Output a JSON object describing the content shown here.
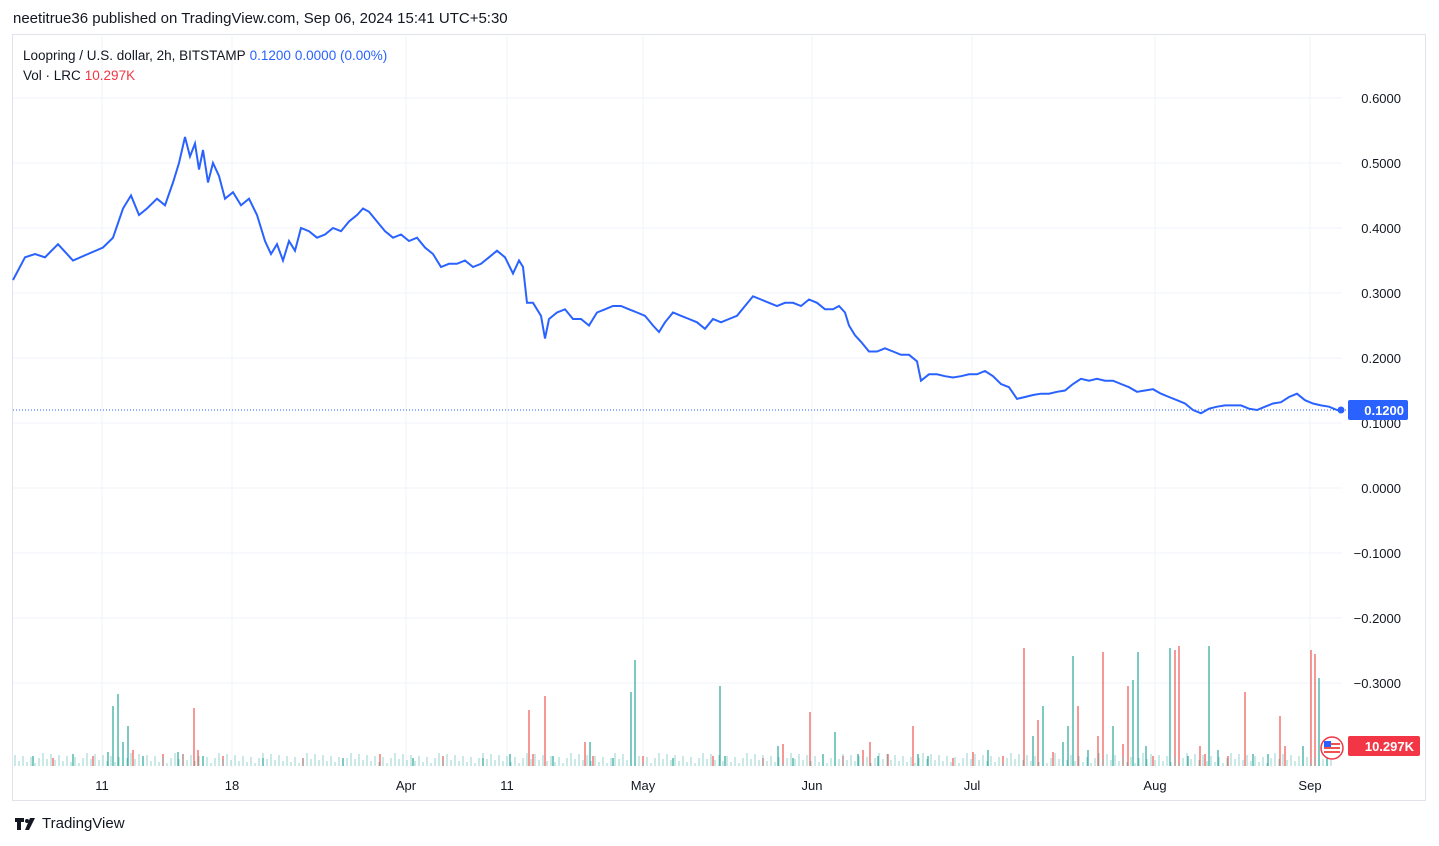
{
  "publisher": "neetitrue36 published on TradingView.com, Sep 06, 2024 15:41 UTC+5:30",
  "legend": {
    "symbol": "Loopring / U.S. dollar, 2h, BITSTAMP",
    "last": "0.1200",
    "change": "0.0000 (0.00%)",
    "vol_label": "Vol · LRC",
    "vol_value": "10.297K"
  },
  "footer": {
    "brand": "TradingView"
  },
  "colors": {
    "line": "#2962ff",
    "up": "#26a69a",
    "down": "#ef5350",
    "grid": "#f0f3fa"
  },
  "chart_data": {
    "type": "line",
    "series": [
      {
        "values": [
          [
            0,
            0.32
          ],
          [
            12,
            0.355
          ],
          [
            22,
            0.36
          ],
          [
            32,
            0.355
          ],
          [
            45,
            0.375
          ],
          [
            60,
            0.35
          ],
          [
            75,
            0.36
          ],
          [
            90,
            0.37
          ],
          [
            100,
            0.385
          ],
          [
            110,
            0.43
          ],
          [
            118,
            0.45
          ],
          [
            126,
            0.42
          ],
          [
            134,
            0.43
          ],
          [
            144,
            0.445
          ],
          [
            152,
            0.435
          ],
          [
            160,
            0.47
          ],
          [
            166,
            0.5
          ],
          [
            172,
            0.54
          ],
          [
            177,
            0.51
          ],
          [
            182,
            0.53
          ],
          [
            186,
            0.49
          ],
          [
            190,
            0.52
          ],
          [
            195,
            0.47
          ],
          [
            200,
            0.5
          ],
          [
            206,
            0.48
          ],
          [
            212,
            0.445
          ],
          [
            220,
            0.455
          ],
          [
            228,
            0.435
          ],
          [
            236,
            0.445
          ],
          [
            244,
            0.42
          ],
          [
            252,
            0.38
          ],
          [
            258,
            0.36
          ],
          [
            264,
            0.375
          ],
          [
            270,
            0.35
          ],
          [
            276,
            0.38
          ],
          [
            282,
            0.365
          ],
          [
            288,
            0.4
          ],
          [
            296,
            0.395
          ],
          [
            304,
            0.385
          ],
          [
            312,
            0.39
          ],
          [
            320,
            0.4
          ],
          [
            328,
            0.395
          ],
          [
            336,
            0.41
          ],
          [
            344,
            0.42
          ],
          [
            350,
            0.43
          ],
          [
            356,
            0.425
          ],
          [
            364,
            0.41
          ],
          [
            372,
            0.395
          ],
          [
            380,
            0.385
          ],
          [
            388,
            0.39
          ],
          [
            396,
            0.38
          ],
          [
            404,
            0.385
          ],
          [
            412,
            0.37
          ],
          [
            420,
            0.36
          ],
          [
            428,
            0.34
          ],
          [
            436,
            0.345
          ],
          [
            444,
            0.345
          ],
          [
            452,
            0.35
          ],
          [
            460,
            0.34
          ],
          [
            468,
            0.345
          ],
          [
            476,
            0.355
          ],
          [
            484,
            0.365
          ],
          [
            492,
            0.355
          ],
          [
            500,
            0.33
          ],
          [
            506,
            0.35
          ],
          [
            510,
            0.34
          ],
          [
            514,
            0.285
          ],
          [
            520,
            0.285
          ],
          [
            528,
            0.265
          ],
          [
            532,
            0.23
          ],
          [
            536,
            0.26
          ],
          [
            544,
            0.27
          ],
          [
            552,
            0.275
          ],
          [
            560,
            0.26
          ],
          [
            568,
            0.26
          ],
          [
            576,
            0.25
          ],
          [
            584,
            0.27
          ],
          [
            592,
            0.275
          ],
          [
            600,
            0.28
          ],
          [
            608,
            0.28
          ],
          [
            616,
            0.275
          ],
          [
            624,
            0.27
          ],
          [
            632,
            0.265
          ],
          [
            640,
            0.25
          ],
          [
            646,
            0.24
          ],
          [
            652,
            0.255
          ],
          [
            660,
            0.27
          ],
          [
            668,
            0.265
          ],
          [
            676,
            0.26
          ],
          [
            684,
            0.255
          ],
          [
            692,
            0.245
          ],
          [
            700,
            0.26
          ],
          [
            708,
            0.255
          ],
          [
            716,
            0.26
          ],
          [
            724,
            0.265
          ],
          [
            732,
            0.28
          ],
          [
            740,
            0.295
          ],
          [
            748,
            0.29
          ],
          [
            756,
            0.285
          ],
          [
            764,
            0.28
          ],
          [
            772,
            0.285
          ],
          [
            780,
            0.285
          ],
          [
            788,
            0.28
          ],
          [
            796,
            0.29
          ],
          [
            804,
            0.285
          ],
          [
            812,
            0.275
          ],
          [
            820,
            0.275
          ],
          [
            826,
            0.28
          ],
          [
            832,
            0.27
          ],
          [
            836,
            0.25
          ],
          [
            842,
            0.235
          ],
          [
            848,
            0.225
          ],
          [
            856,
            0.21
          ],
          [
            864,
            0.21
          ],
          [
            872,
            0.215
          ],
          [
            880,
            0.21
          ],
          [
            888,
            0.205
          ],
          [
            896,
            0.205
          ],
          [
            904,
            0.195
          ],
          [
            908,
            0.165
          ],
          [
            916,
            0.175
          ],
          [
            924,
            0.175
          ],
          [
            932,
            0.172
          ],
          [
            940,
            0.17
          ],
          [
            948,
            0.172
          ],
          [
            956,
            0.175
          ],
          [
            964,
            0.175
          ],
          [
            972,
            0.18
          ],
          [
            980,
            0.172
          ],
          [
            988,
            0.16
          ],
          [
            996,
            0.155
          ],
          [
            1004,
            0.137
          ],
          [
            1012,
            0.14
          ],
          [
            1020,
            0.143
          ],
          [
            1028,
            0.145
          ],
          [
            1036,
            0.145
          ],
          [
            1044,
            0.148
          ],
          [
            1052,
            0.15
          ],
          [
            1060,
            0.16
          ],
          [
            1068,
            0.168
          ],
          [
            1076,
            0.165
          ],
          [
            1084,
            0.168
          ],
          [
            1092,
            0.165
          ],
          [
            1100,
            0.165
          ],
          [
            1108,
            0.16
          ],
          [
            1116,
            0.155
          ],
          [
            1124,
            0.148
          ],
          [
            1132,
            0.15
          ],
          [
            1140,
            0.152
          ],
          [
            1148,
            0.145
          ],
          [
            1156,
            0.14
          ],
          [
            1164,
            0.135
          ],
          [
            1172,
            0.13
          ],
          [
            1180,
            0.12
          ],
          [
            1188,
            0.115
          ],
          [
            1196,
            0.122
          ],
          [
            1204,
            0.125
          ],
          [
            1212,
            0.127
          ],
          [
            1220,
            0.127
          ],
          [
            1228,
            0.127
          ],
          [
            1236,
            0.122
          ],
          [
            1244,
            0.12
          ],
          [
            1252,
            0.125
          ],
          [
            1260,
            0.13
          ],
          [
            1268,
            0.132
          ],
          [
            1276,
            0.14
          ],
          [
            1284,
            0.145
          ],
          [
            1292,
            0.135
          ],
          [
            1300,
            0.13
          ],
          [
            1308,
            0.127
          ],
          [
            1316,
            0.125
          ],
          [
            1324,
            0.12
          ],
          [
            1328,
            0.12
          ]
        ]
      }
    ],
    "ylim": [
      -0.35,
      0.65
    ],
    "y_ticks": [
      "0.6000",
      "0.5000",
      "0.4000",
      "0.3000",
      "0.2000",
      "0.1000",
      "0.0000",
      "−0.1000",
      "−0.2000",
      "−0.3000"
    ],
    "x_ticks": [
      "11",
      "18",
      "Apr",
      "11",
      "May",
      "Jun",
      "Jul",
      "Aug",
      "Sep"
    ],
    "last_label": "0.1200",
    "vol_label": "10.297K",
    "volume": [
      [
        20,
        0.05,
        "g"
      ],
      [
        40,
        0.04,
        "r"
      ],
      [
        60,
        0.06,
        "g"
      ],
      [
        80,
        0.05,
        "r"
      ],
      [
        95,
        0.07,
        "g"
      ],
      [
        100,
        0.3,
        "g"
      ],
      [
        105,
        0.36,
        "g"
      ],
      [
        110,
        0.12,
        "g"
      ],
      [
        115,
        0.2,
        "g"
      ],
      [
        120,
        0.08,
        "r"
      ],
      [
        130,
        0.05,
        "g"
      ],
      [
        150,
        0.06,
        "r"
      ],
      [
        165,
        0.07,
        "g"
      ],
      [
        170,
        0.06,
        "r"
      ],
      [
        181,
        0.29,
        "r"
      ],
      [
        185,
        0.08,
        "r"
      ],
      [
        190,
        0.05,
        "g"
      ],
      [
        210,
        0.05,
        "r"
      ],
      [
        250,
        0.04,
        "g"
      ],
      [
        290,
        0.04,
        "r"
      ],
      [
        330,
        0.04,
        "g"
      ],
      [
        367,
        0.06,
        "r"
      ],
      [
        400,
        0.04,
        "g"
      ],
      [
        430,
        0.05,
        "r"
      ],
      [
        470,
        0.04,
        "g"
      ],
      [
        497,
        0.06,
        "g"
      ],
      [
        516,
        0.28,
        "r"
      ],
      [
        520,
        0.06,
        "r"
      ],
      [
        532,
        0.35,
        "r"
      ],
      [
        540,
        0.05,
        "g"
      ],
      [
        572,
        0.12,
        "r"
      ],
      [
        577,
        0.12,
        "g"
      ],
      [
        580,
        0.05,
        "r"
      ],
      [
        600,
        0.04,
        "g"
      ],
      [
        618,
        0.37,
        "g"
      ],
      [
        622,
        0.53,
        "g"
      ],
      [
        630,
        0.05,
        "r"
      ],
      [
        660,
        0.04,
        "g"
      ],
      [
        700,
        0.05,
        "r"
      ],
      [
        707,
        0.4,
        "g"
      ],
      [
        712,
        0.05,
        "g"
      ],
      [
        750,
        0.04,
        "r"
      ],
      [
        765,
        0.1,
        "g"
      ],
      [
        770,
        0.11,
        "r"
      ],
      [
        780,
        0.04,
        "g"
      ],
      [
        797,
        0.27,
        "r"
      ],
      [
        810,
        0.06,
        "g"
      ],
      [
        822,
        0.17,
        "g"
      ],
      [
        830,
        0.05,
        "r"
      ],
      [
        845,
        0.06,
        "g"
      ],
      [
        850,
        0.08,
        "r"
      ],
      [
        857,
        0.12,
        "r"
      ],
      [
        865,
        0.05,
        "g"
      ],
      [
        875,
        0.06,
        "r"
      ],
      [
        900,
        0.2,
        "r"
      ],
      [
        905,
        0.06,
        "g"
      ],
      [
        915,
        0.05,
        "g"
      ],
      [
        940,
        0.04,
        "r"
      ],
      [
        960,
        0.07,
        "r"
      ],
      [
        975,
        0.08,
        "g"
      ],
      [
        990,
        0.05,
        "r"
      ],
      [
        1011,
        0.59,
        "r"
      ],
      [
        1020,
        0.15,
        "g"
      ],
      [
        1025,
        0.23,
        "r"
      ],
      [
        1030,
        0.3,
        "g"
      ],
      [
        1040,
        0.07,
        "r"
      ],
      [
        1050,
        0.12,
        "g"
      ],
      [
        1055,
        0.2,
        "g"
      ],
      [
        1060,
        0.55,
        "g"
      ],
      [
        1065,
        0.3,
        "r"
      ],
      [
        1075,
        0.08,
        "g"
      ],
      [
        1085,
        0.15,
        "r"
      ],
      [
        1090,
        0.57,
        "r"
      ],
      [
        1100,
        0.2,
        "g"
      ],
      [
        1110,
        0.11,
        "r"
      ],
      [
        1115,
        0.4,
        "r"
      ],
      [
        1120,
        0.43,
        "g"
      ],
      [
        1125,
        0.57,
        "g"
      ],
      [
        1133,
        0.1,
        "g"
      ],
      [
        1140,
        0.05,
        "r"
      ],
      [
        1157,
        0.59,
        "g"
      ],
      [
        1162,
        0.58,
        "r"
      ],
      [
        1166,
        0.6,
        "r"
      ],
      [
        1175,
        0.05,
        "g"
      ],
      [
        1187,
        0.1,
        "r"
      ],
      [
        1192,
        0.06,
        "r"
      ],
      [
        1196,
        0.6,
        "g"
      ],
      [
        1205,
        0.08,
        "g"
      ],
      [
        1215,
        0.05,
        "r"
      ],
      [
        1232,
        0.37,
        "r"
      ],
      [
        1240,
        0.06,
        "g"
      ],
      [
        1255,
        0.06,
        "g"
      ],
      [
        1267,
        0.25,
        "r"
      ],
      [
        1272,
        0.1,
        "r"
      ],
      [
        1290,
        0.1,
        "g"
      ],
      [
        1298,
        0.58,
        "r"
      ],
      [
        1302,
        0.56,
        "r"
      ],
      [
        1306,
        0.44,
        "g"
      ],
      [
        1314,
        0.05,
        "g"
      ]
    ]
  }
}
